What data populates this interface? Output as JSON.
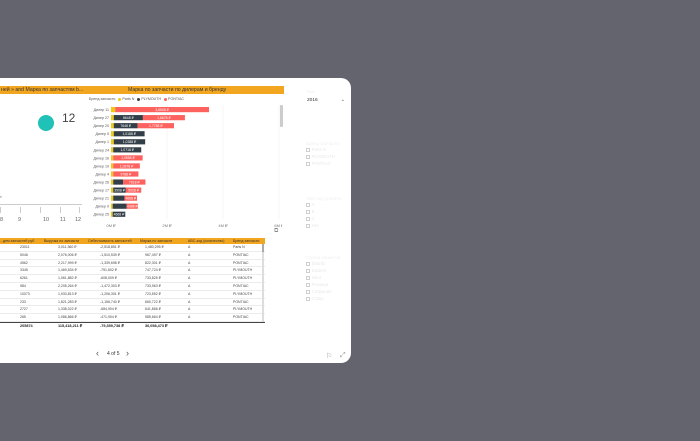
{
  "titles": {
    "left": "ней » and Марка по запчастям b...",
    "right": "Марка по запчасти по дилерам и бренду"
  },
  "gauge": {
    "value": "12",
    "tiny_label": "е",
    "axis_labels": [
      "8",
      "9",
      "10",
      "11",
      "12"
    ]
  },
  "legend": {
    "title": "Бренд запчасти",
    "items": [
      {
        "label": "Parts N",
        "color": "#f2c811"
      },
      {
        "label": "PLYMOUTH",
        "color": "#333f48"
      },
      {
        "label": "PONTIAC",
        "color": "#fd625e"
      }
    ]
  },
  "chart_data": {
    "type": "bar",
    "stacked": true,
    "orientation": "horizontal",
    "categories": [
      "Дилер 11",
      "Дилер 27",
      "Дилер 20",
      "Дилер 5",
      "Дилер 1",
      "Дилер 24",
      "Дилер 16",
      "Дилер 19",
      "Дилер 4",
      "Дилер 26",
      "Дилер 17",
      "Дилер 21",
      "Дилер 9",
      "Дилер 25"
    ],
    "series": [
      {
        "name": "Parts N",
        "values": [
          0.15,
          0.1,
          0.1,
          0.1,
          0.1,
          0.08,
          0.08,
          0.08,
          0.08,
          0.08,
          0.08,
          0.08,
          0.06,
          0.06
        ]
      },
      {
        "name": "PLYMOUTH",
        "values": [
          0,
          1.04,
          0.85,
          1.1,
          1.12,
          1.0,
          0,
          0,
          0,
          0.35,
          0.45,
          0.4,
          0.5,
          0.45
        ]
      },
      {
        "name": "PONTIAC",
        "values": [
          3.35,
          1.5,
          1.3,
          0,
          0,
          0,
          1.05,
          0.95,
          0.9,
          0.8,
          0.55,
          0.45,
          0.4,
          0
        ]
      }
    ],
    "bar_labels": [
      [
        "",
        "",
        "3,6508 ₽"
      ],
      [
        "",
        "8648 ₽",
        "1,6678 ₽"
      ],
      [
        "",
        "7648 ₽",
        "1,7788 ₽"
      ],
      [
        "",
        "1,0188 ₽",
        ""
      ],
      [
        "",
        "1,0388 ₽",
        ""
      ],
      [
        "",
        "1,0718 ₽",
        ""
      ],
      [
        "",
        "",
        "1,0558 ₽"
      ],
      [
        "",
        "",
        "1,0378 ₽"
      ],
      [
        "",
        "",
        "9788 ₽"
      ],
      [
        "",
        "",
        "7918 ₽"
      ],
      [
        "",
        "3908 ₽",
        "5028 ₽"
      ],
      [
        "",
        "",
        "4668 ₽"
      ],
      [
        "",
        "",
        "4398 ₽"
      ],
      [
        "",
        "4668 ₽",
        ""
      ]
    ],
    "x_ticks": [
      "0М ₽",
      "2М ₽",
      "4М ₽",
      "6М ₽"
    ],
    "xlim": [
      0,
      6
    ]
  },
  "table": {
    "headers": [
      "",
      "...дем запчастей руб",
      "Выручка по запчасти",
      "Себестоимость запчастей",
      "Маржа по запчасти",
      "ABC-код (количество)",
      "Бренд запчасти"
    ],
    "rows": [
      [
        "",
        "23011",
        "3,011,360 ₽",
        "-2,518,851 ₽",
        "1,480,295 ₽",
        "A",
        "Parts N"
      ],
      [
        "",
        "5046",
        "2,076,006 ₽",
        "-1,510,539 ₽",
        "967,497 ₽",
        "A",
        "PONTIAC"
      ],
      [
        "",
        "4562",
        "2,217,999 ₽",
        "-1,339,698 ₽",
        "822,301 ₽",
        "A",
        "PONTIAC"
      ],
      [
        "",
        "3345",
        "1,469,534 ₽",
        "-751,602 ₽",
        "747,724 ₽",
        "A",
        "PLYMOUTH"
      ],
      [
        "",
        "6261",
        "1,061,882 ₽",
        "-608,009 ₽",
        "733,825 ₽",
        "A",
        "PLYMOUTH"
      ],
      [
        "",
        "984",
        "2,205,264 ₽",
        "-1,472,303 ₽",
        "733,963 ₽",
        "A",
        "PONTIAC"
      ],
      [
        "",
        "10073",
        "1,933,813 ₽",
        "-1,206,301 ₽",
        "723,552 ₽",
        "A",
        "PLYMOUTH"
      ],
      [
        "",
        "233",
        "1,821,283 ₽",
        "-1,156,740 ₽",
        "660,722 ₽",
        "A",
        "PONTIAC"
      ],
      [
        "",
        "2727",
        "1,338,022 ₽",
        "-684,904 ₽",
        "641,866 ₽",
        "A",
        "PLYMOUTH"
      ],
      [
        "",
        "265",
        "1,086,866 ₽",
        "-471,904 ₽",
        "585,664 ₽",
        "A",
        "PONTIAC"
      ]
    ],
    "total": [
      "",
      "205874",
      "115,418,211 ₽",
      "-79,359,738 ₽",
      "36,058,473 ₽",
      "",
      ""
    ]
  },
  "pager": {
    "label": "4 of 5"
  },
  "filters": {
    "year": {
      "title": "Year",
      "value": "2016"
    },
    "brand": {
      "title": "Бренд запчасти",
      "options": [
        "Parts N",
        "PLYMOUTH",
        "PONTIAC"
      ]
    },
    "abc": {
      "title": "ABC-код (количе...",
      "options": [
        "A",
        "B",
        "C",
        "Нет"
      ]
    },
    "clients": {
      "title": "Группа клиентов",
      "options": [
        "(Blank)",
        "Dealers",
        "Inkut",
        "Розница",
        "Собрание",
        "Страх"
      ]
    }
  },
  "colors": {
    "accent": "#f2a51f",
    "teal": "#20c1b6",
    "plymouth": "#333f48",
    "pontiac": "#fd625e",
    "parts": "#f2c811"
  }
}
